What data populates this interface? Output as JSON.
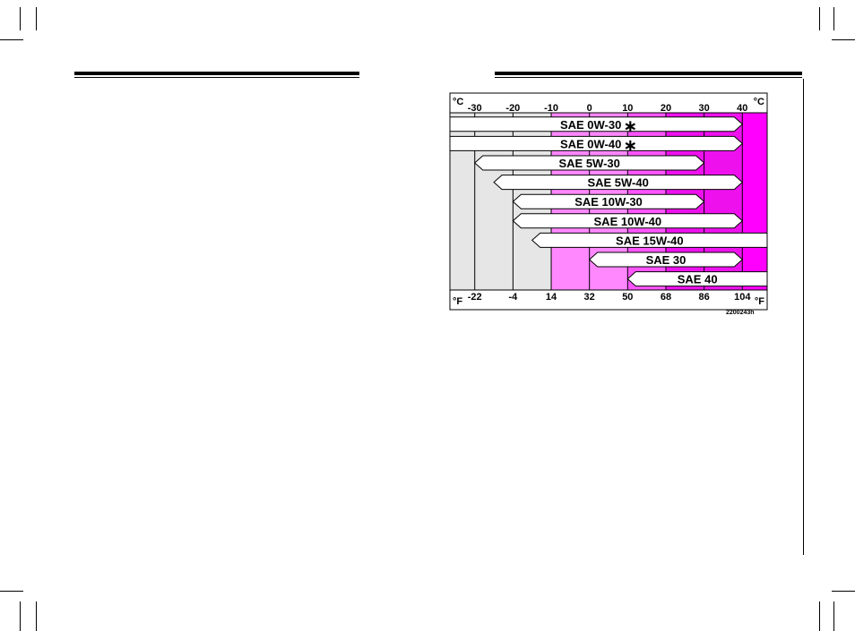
{
  "chart_data": {
    "type": "range-bar",
    "title": "",
    "unit_top": "°C",
    "unit_bottom": "°F",
    "celsius_ticks": [
      "-30",
      "-20",
      "-10",
      "0",
      "10",
      "20",
      "30",
      "40"
    ],
    "fahrenheit_ticks": [
      "-22",
      "-4",
      "14",
      "32",
      "50",
      "68",
      "86",
      "104"
    ],
    "xlim_celsius": [
      -36.5,
      46.5
    ],
    "zones": [
      {
        "from": -36.5,
        "to": -10,
        "color": "#e6e6e6"
      },
      {
        "from": -10,
        "to": 10,
        "color": "#ff88ff"
      },
      {
        "from": 10,
        "to": 20,
        "color": "#ff55ff"
      },
      {
        "from": 20,
        "to": 40,
        "color": "#ee11ee"
      },
      {
        "from": 40,
        "to": 46.5,
        "color": "#ff00ff"
      }
    ],
    "series": [
      {
        "label": "SAE 0W-30",
        "asterisk": true,
        "from": -36.5,
        "to": 40
      },
      {
        "label": "SAE 0W-40",
        "asterisk": true,
        "from": -36.5,
        "to": 40
      },
      {
        "label": "SAE 5W-30",
        "asterisk": false,
        "from": -30,
        "to": 30
      },
      {
        "label": "SAE 5W-40",
        "asterisk": false,
        "from": -25,
        "to": 40
      },
      {
        "label": "SAE 10W-30",
        "asterisk": false,
        "from": -20,
        "to": 30
      },
      {
        "label": "SAE 10W-40",
        "asterisk": false,
        "from": -20,
        "to": 40
      },
      {
        "label": "SAE 15W-40",
        "asterisk": false,
        "from": -15,
        "to": 46.5
      },
      {
        "label": "SAE 30",
        "asterisk": false,
        "from": 0,
        "to": 40
      },
      {
        "label": "SAE 40",
        "asterisk": false,
        "from": 10,
        "to": 46.5
      }
    ],
    "asterisk_symbol": "∗",
    "figure_code": "2200243h"
  }
}
